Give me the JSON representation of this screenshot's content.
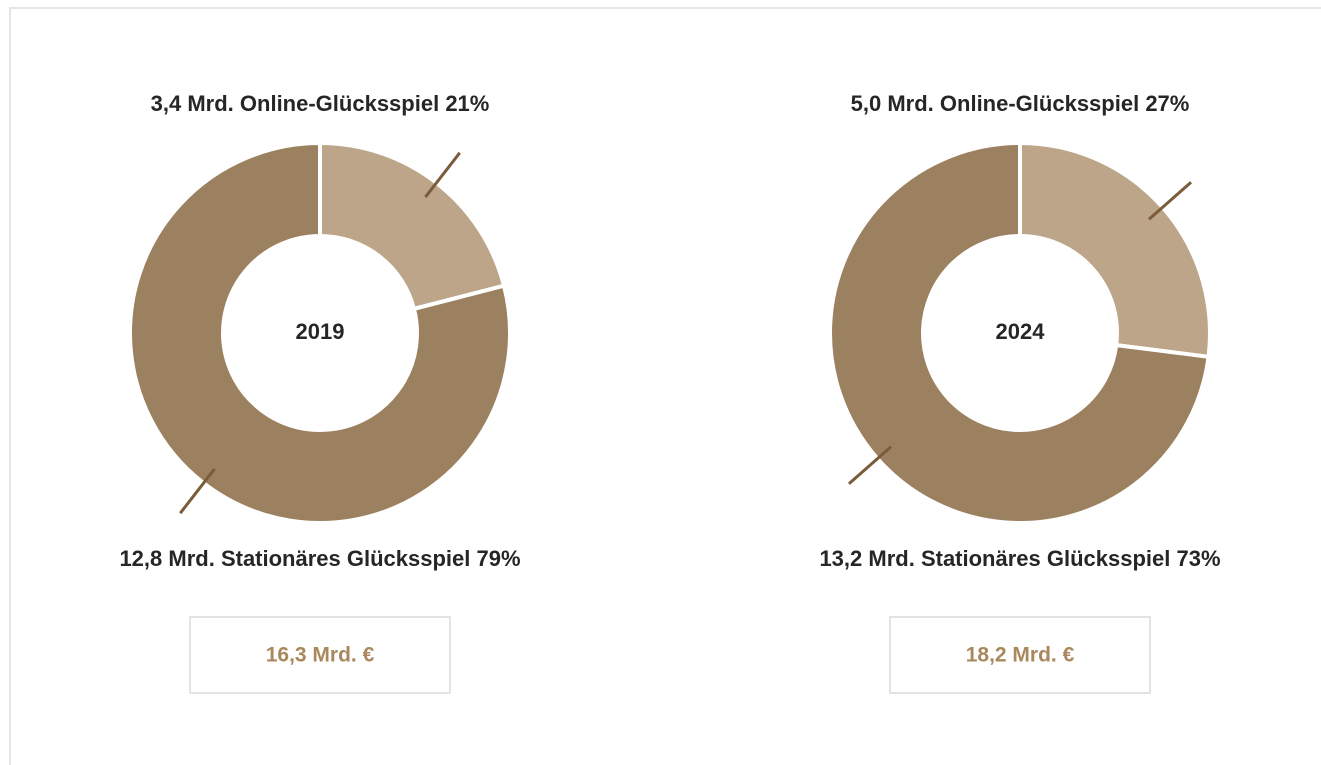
{
  "chart_data": [
    {
      "type": "pie",
      "center_label": "2019",
      "categories": [
        "Online-Glücksspiel",
        "Stationäres Glücksspiel"
      ],
      "amounts": [
        "3,4 Mrd.",
        "12,8 Mrd."
      ],
      "values": [
        21,
        79
      ],
      "value_labels": [
        "21%",
        "79%"
      ],
      "colors": [
        "#bca588",
        "#9c8160"
      ],
      "total": "16,3 Mrd. €"
    },
    {
      "type": "pie",
      "center_label": "2024",
      "categories": [
        "Online-Glücksspiel",
        "Stationäres Glücksspiel"
      ],
      "amounts": [
        "5,0 Mrd.",
        "13,2 Mrd."
      ],
      "values": [
        27,
        73
      ],
      "value_labels": [
        "27%",
        "73%"
      ],
      "colors": [
        "#bca588",
        "#9c8160"
      ],
      "total": "18,2 Mrd. €"
    }
  ]
}
